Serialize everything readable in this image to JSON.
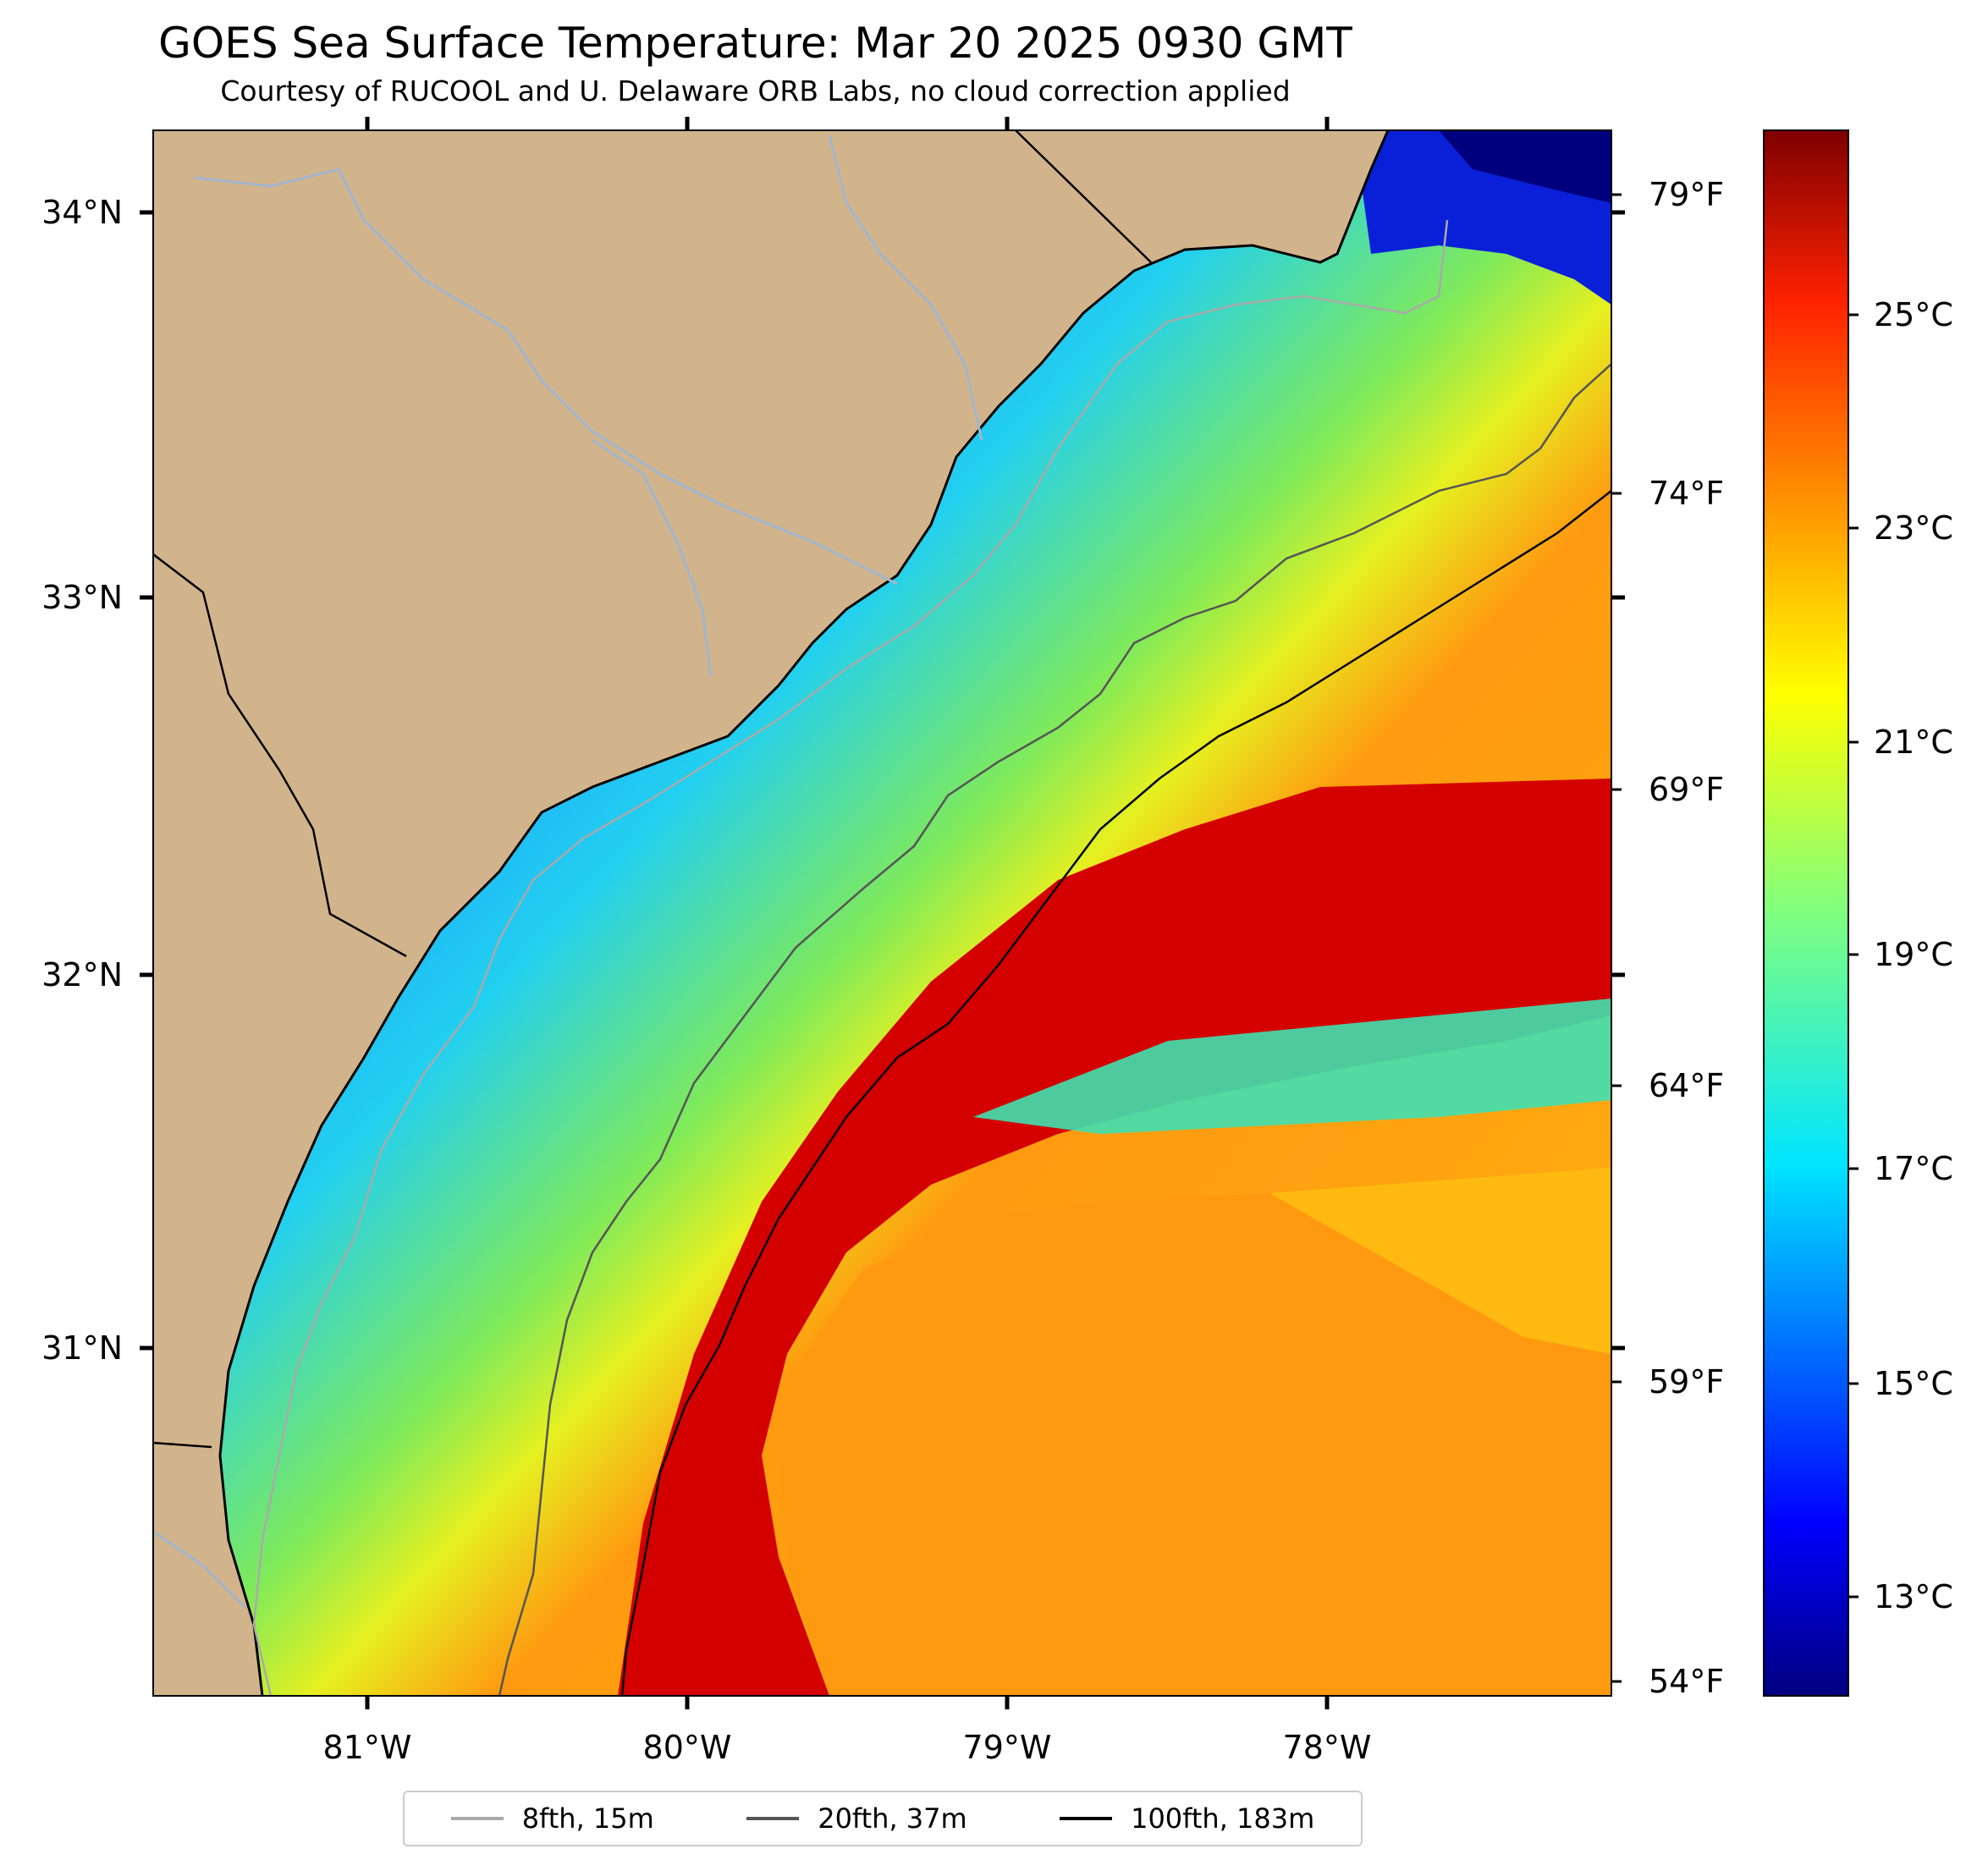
{
  "title": "GOES Sea Surface Temperature: Mar 20 2025 0930 GMT",
  "subtitle": "Courtesy of RUCOOL and U. Delaware ORB Labs, no cloud correction applied",
  "map": {
    "longitude_ticks": [
      "81°W",
      "80°W",
      "79°W",
      "78°W"
    ],
    "latitude_ticks": [
      "34°N",
      "33°N",
      "32°N",
      "31°N"
    ],
    "fahrenheit_ticks": [
      "79°F",
      "74°F",
      "69°F",
      "64°F",
      "59°F",
      "54°F"
    ]
  },
  "colorbar": {
    "ticks": [
      "25°C",
      "23°C",
      "21°C",
      "19°C",
      "17°C",
      "15°C",
      "13°C"
    ]
  },
  "legend": [
    {
      "label": "8fth, 15m",
      "color": "#aaaaaa"
    },
    {
      "label": "20fth, 37m",
      "color": "#555555"
    },
    {
      "label": "100fth, 183m",
      "color": "#000000"
    }
  ],
  "colors": {
    "land": "#d2b48c",
    "rivers": "#a2b5cd",
    "warm": "#d90000",
    "cold": "#00007f"
  }
}
